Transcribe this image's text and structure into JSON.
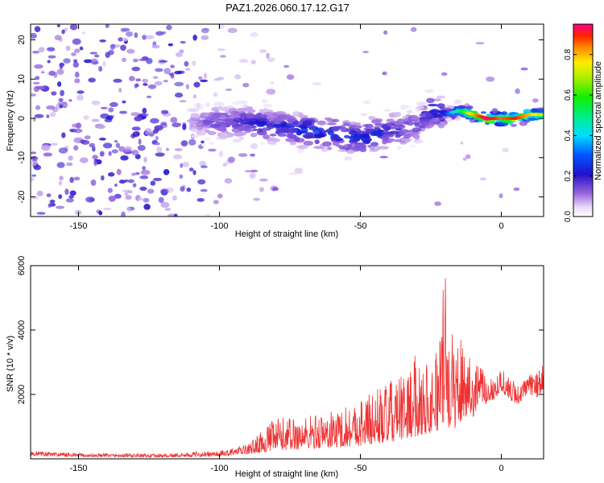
{
  "title": "PAZ1.2026.060.17.12.G17",
  "chart_data": [
    {
      "type": "heatmap",
      "title": "PAZ1.2026.060.17.12.G17",
      "xlabel": "Height of straight line (km)",
      "ylabel": "Frequency (Hz)",
      "xlim": [
        -167,
        15
      ],
      "ylim": [
        -25,
        24
      ],
      "xticks": [
        -150,
        -100,
        -50,
        0
      ],
      "yticks": [
        -20,
        -10,
        0,
        10,
        20
      ],
      "xtick_labels": [
        "-150",
        "-100",
        "-50",
        "0"
      ],
      "ytick_labels": [
        "-20",
        "-10",
        "0",
        "10",
        "20"
      ],
      "colorbar": {
        "label": "Normalized spectral amplitude",
        "range": [
          0.0,
          0.95
        ],
        "ticks": [
          "0.0",
          "0.2",
          "0.4",
          "0.6",
          "0.8"
        ]
      },
      "ridge": {
        "description_values": "signal ridge frequency (Hz) vs height (km)",
        "x": [
          -110,
          -100,
          -90,
          -80,
          -70,
          -60,
          -50,
          -40,
          -30,
          -25,
          -20,
          -15,
          -10,
          -5,
          0,
          5,
          10,
          15
        ],
        "freq": [
          -1,
          -1,
          -1,
          -2,
          -3,
          -4,
          -5,
          -3,
          -2,
          2,
          1,
          2,
          1,
          0,
          0,
          0,
          1,
          1
        ],
        "peak_amplitude": [
          0.1,
          0.2,
          0.25,
          0.25,
          0.3,
          0.3,
          0.3,
          0.25,
          0.2,
          0.3,
          0.25,
          0.5,
          0.8,
          0.95,
          0.85,
          0.9,
          0.8,
          0.7
        ]
      }
    },
    {
      "type": "line",
      "xlabel": "Height of straight line (km)",
      "ylabel": "SNR (10 * v/v)",
      "xlim": [
        -167,
        15
      ],
      "ylim": [
        0,
        6000
      ],
      "xticks": [
        -150,
        -100,
        -50,
        0
      ],
      "yticks": [
        2000,
        4000,
        6000
      ],
      "xtick_labels": [
        "-150",
        "-100",
        "-50",
        "0"
      ],
      "ytick_labels": [
        "2000",
        "4000",
        "6000"
      ],
      "color": "#ee3333",
      "envelope": {
        "x": [
          -167,
          -150,
          -120,
          -100,
          -90,
          -80,
          -70,
          -60,
          -50,
          -45,
          -40,
          -35,
          -30,
          -25,
          -22,
          -20,
          -18,
          -15,
          -12,
          -10,
          -8,
          -5,
          -2,
          0,
          3,
          6,
          10,
          13,
          15
        ],
        "base": [
          100,
          60,
          50,
          80,
          150,
          250,
          300,
          350,
          400,
          450,
          500,
          600,
          700,
          800,
          900,
          1100,
          900,
          1000,
          1400,
          1200,
          1800,
          1700,
          1900,
          2100,
          1800,
          1700,
          2000,
          1900,
          2200
        ],
        "peak": [
          250,
          180,
          160,
          250,
          450,
          1300,
          1350,
          1500,
          1900,
          2200,
          2400,
          2600,
          3300,
          3000,
          3800,
          6000,
          3900,
          4000,
          3700,
          3200,
          3000,
          2500,
          2700,
          2900,
          2500,
          2400,
          2600,
          2800,
          2900
        ]
      }
    }
  ]
}
